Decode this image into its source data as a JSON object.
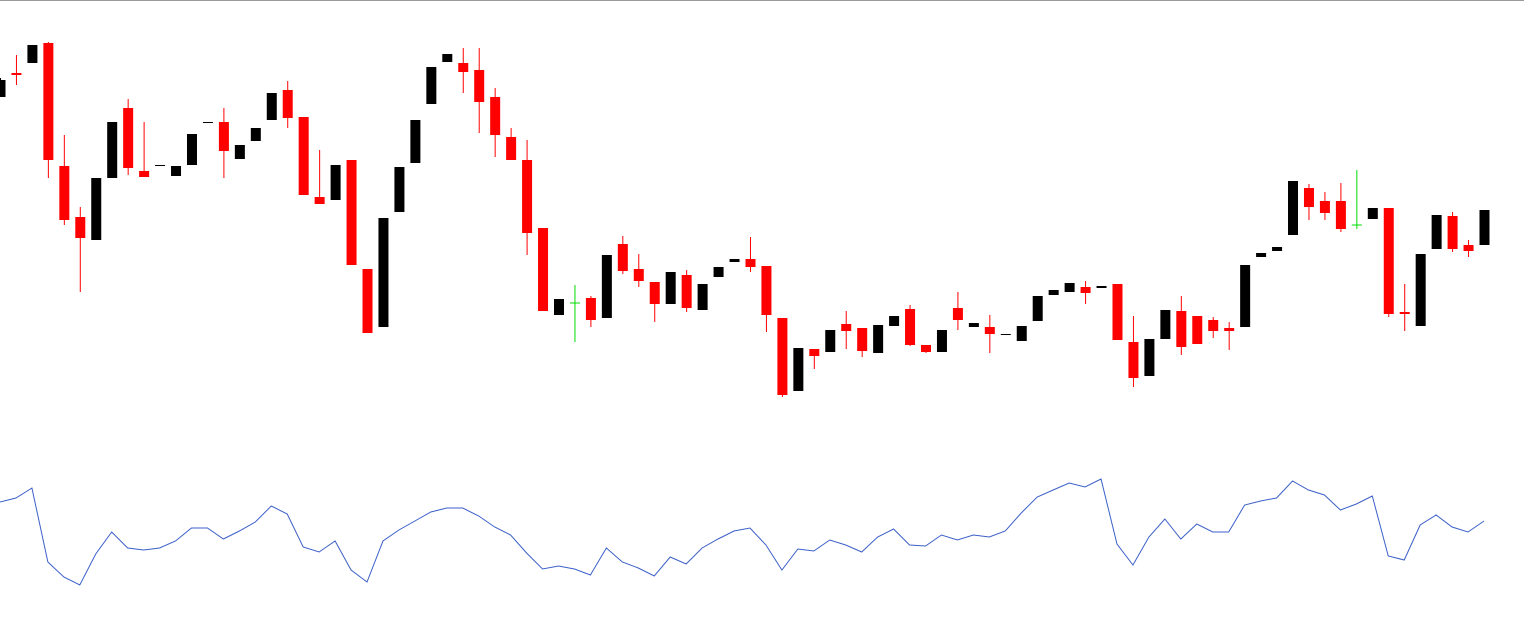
{
  "chart_data": [
    {
      "type": "candlestick",
      "open": [
        546,
        570,
        580,
        600,
        477,
        426,
        403,
        465,
        535,
        472,
        477,
        467,
        478,
        520,
        521,
        484,
        502,
        523,
        553,
        526,
        446,
        443,
        483,
        374,
        316,
        431,
        480,
        539,
        581,
        580,
        573,
        546,
        506,
        483,
        415,
        328,
        340,
        345,
        325,
        399,
        374,
        361,
        339,
        368,
        333,
        366,
        381,
        384,
        377,
        325,
        252,
        294,
        291,
        319,
        315,
        290,
        317,
        334,
        298,
        291,
        335,
        316,
        316,
        308,
        302,
        322,
        348,
        351,
        356,
        355,
        359,
        301,
        267,
        304,
        332,
        327,
        323,
        315,
        316,
        386,
        392,
        408,
        455,
        442,
        442,
        418,
        424,
        435,
        331,
        317,
        394,
        427,
        398,
        398
      ],
      "high": [
        565,
        588,
        598,
        601,
        508,
        436,
        465,
        521,
        544,
        521,
        478,
        477,
        509,
        521,
        535,
        498,
        515,
        550,
        562,
        526,
        493,
        478,
        483,
        374,
        425,
        476,
        523,
        576,
        589,
        595,
        595,
        555,
        515,
        503,
        415,
        344,
        358,
        347,
        388,
        407,
        389,
        361,
        371,
        373,
        359,
        376,
        384,
        406,
        377,
        325,
        295,
        294,
        313,
        332,
        315,
        318,
        327,
        338,
        298,
        313,
        351,
        320,
        328,
        309,
        317,
        347,
        353,
        360,
        362,
        357,
        359,
        327,
        304,
        333,
        347,
        327,
        326,
        321,
        378,
        390,
        396,
        462,
        459,
        451,
        460,
        473,
        435,
        435,
        359,
        389,
        428,
        431,
        403,
        433
      ],
      "low": [
        546,
        558,
        580,
        465,
        418,
        351,
        403,
        465,
        468,
        466,
        477,
        467,
        478,
        520,
        465,
        484,
        502,
        523,
        515,
        448,
        439,
        443,
        378,
        310,
        316,
        431,
        480,
        539,
        581,
        550,
        510,
        486,
        483,
        388,
        332,
        328,
        301,
        316,
        325,
        369,
        356,
        321,
        339,
        331,
        333,
        366,
        381,
        371,
        311,
        246,
        252,
        274,
        291,
        294,
        286,
        290,
        317,
        297,
        290,
        291,
        313,
        316,
        290,
        308,
        302,
        322,
        348,
        351,
        339,
        355,
        303,
        256,
        267,
        304,
        288,
        299,
        305,
        293,
        316,
        386,
        392,
        408,
        423,
        423,
        411,
        414,
        424,
        326,
        312,
        317,
        394,
        391,
        386,
        398
      ],
      "close": [
        563,
        568,
        598,
        483,
        423,
        405,
        465,
        521,
        475,
        466,
        478,
        477,
        509,
        521,
        492,
        498,
        515,
        550,
        525,
        448,
        439,
        478,
        378,
        310,
        425,
        476,
        523,
        576,
        589,
        571,
        541,
        508,
        483,
        410,
        332,
        344,
        340,
        323,
        388,
        372,
        362,
        339,
        371,
        335,
        359,
        376,
        384,
        376,
        328,
        248,
        295,
        287,
        313,
        312,
        292,
        318,
        327,
        298,
        291,
        313,
        323,
        320,
        309,
        309,
        317,
        347,
        353,
        360,
        350,
        357,
        303,
        265,
        304,
        333,
        296,
        299,
        312,
        312,
        378,
        390,
        396,
        462,
        436,
        430,
        414,
        418,
        435,
        329,
        329,
        389,
        428,
        394,
        392,
        433
      ],
      "up_color": "#000000",
      "down_color": "#ff0000",
      "doji_color": "#00dd00",
      "ylim": [
        0,
        643
      ]
    },
    {
      "type": "line",
      "values": [
        141,
        145,
        155,
        81,
        66,
        58,
        89,
        111,
        95,
        93,
        95,
        102,
        115,
        115,
        104,
        112,
        121,
        137,
        129,
        96,
        91,
        102,
        73,
        61,
        102,
        113,
        122,
        131,
        135,
        135,
        127,
        116,
        108,
        90,
        74,
        77,
        74,
        68,
        95,
        81,
        75,
        67,
        86,
        79,
        95,
        104,
        112,
        115,
        98,
        73,
        94,
        92,
        103,
        98,
        91,
        106,
        114,
        98,
        97,
        108,
        103,
        108,
        106,
        112,
        130,
        146,
        153,
        160,
        156,
        164,
        99,
        78,
        106,
        124,
        104,
        119,
        111,
        111,
        138,
        142,
        145,
        162,
        153,
        148,
        133,
        139,
        147,
        87,
        83,
        118,
        128,
        116,
        111,
        122
      ],
      "color": "#3b5fc8",
      "ylim": [
        0,
        643
      ]
    }
  ]
}
